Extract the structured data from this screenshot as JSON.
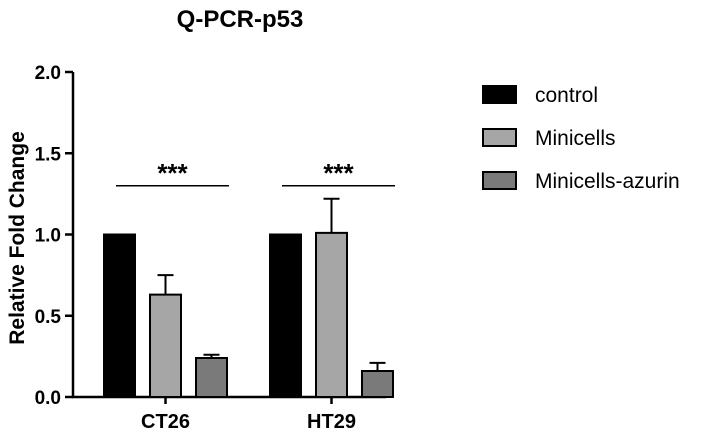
{
  "chart_data": {
    "type": "bar",
    "title": "Q-PCR-p53",
    "xlabel": "",
    "ylabel": "Relative Fold Change",
    "ylim": [
      0,
      2.0
    ],
    "yticks": [
      "0.0",
      "0.5",
      "1.0",
      "1.5",
      "2.0"
    ],
    "categories": [
      "CT26",
      "HT29"
    ],
    "series": [
      {
        "name": "control",
        "values": [
          1.0,
          1.0
        ],
        "errors": [
          0,
          0
        ],
        "color": "#000000"
      },
      {
        "name": "Minicells",
        "values": [
          0.63,
          1.01
        ],
        "errors": [
          0.12,
          0.21
        ],
        "color": "#a6a6a6"
      },
      {
        "name": "Minicells-azurin",
        "values": [
          0.24,
          0.16
        ],
        "errors": [
          0.02,
          0.05
        ],
        "color": "#7a7a7a"
      }
    ],
    "significance": [
      {
        "category": "CT26",
        "label": "***",
        "y": 1.3
      },
      {
        "category": "HT29",
        "label": "***",
        "y": 1.3
      }
    ],
    "legend_position": "right",
    "grid": false
  }
}
